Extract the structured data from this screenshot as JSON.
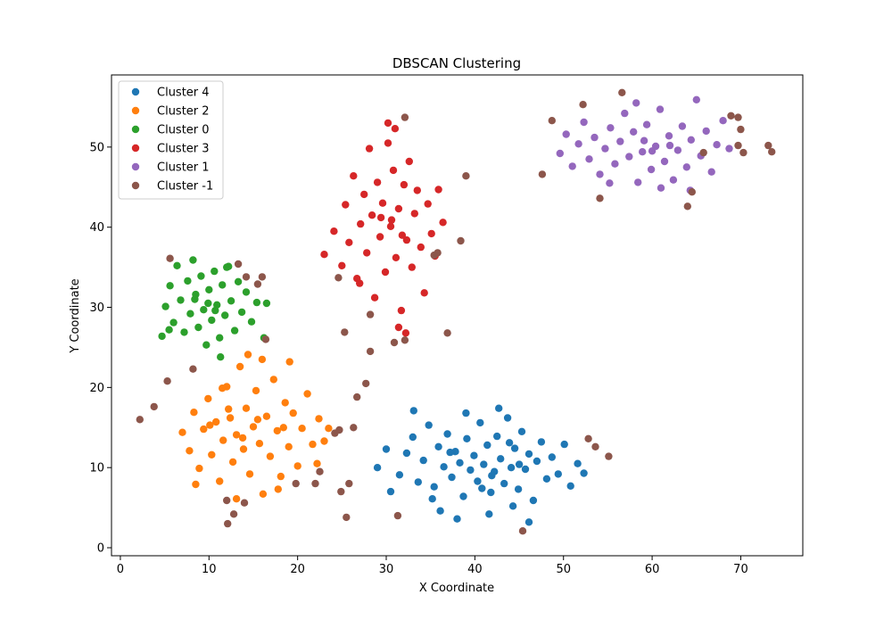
{
  "chart_data": {
    "type": "scatter",
    "title": "DBSCAN Clustering",
    "xlabel": "X Coordinate",
    "ylabel": "Y Coordinate",
    "xlim": [
      -1,
      77
    ],
    "ylim": [
      -1,
      59
    ],
    "x_ticks": [
      0,
      10,
      20,
      30,
      40,
      50,
      60,
      70
    ],
    "y_ticks": [
      0,
      10,
      20,
      30,
      40,
      50
    ],
    "grid": false,
    "legend_position": "top-left",
    "series": [
      {
        "name": "Cluster 4",
        "color": "#1f77b4",
        "points": [
          [
            29.0,
            10.0
          ],
          [
            30.0,
            12.3
          ],
          [
            31.5,
            9.1
          ],
          [
            32.3,
            11.8
          ],
          [
            33.0,
            13.8
          ],
          [
            33.6,
            8.2
          ],
          [
            34.2,
            10.9
          ],
          [
            34.8,
            15.3
          ],
          [
            35.4,
            7.6
          ],
          [
            35.9,
            12.6
          ],
          [
            36.5,
            10.1
          ],
          [
            36.9,
            14.2
          ],
          [
            37.4,
            8.8
          ],
          [
            37.8,
            12.0
          ],
          [
            38.3,
            10.6
          ],
          [
            38.7,
            6.4
          ],
          [
            39.1,
            13.6
          ],
          [
            39.5,
            9.7
          ],
          [
            39.9,
            11.5
          ],
          [
            40.3,
            8.3
          ],
          [
            40.6,
            15.6
          ],
          [
            41.0,
            10.4
          ],
          [
            41.4,
            12.8
          ],
          [
            41.8,
            6.9
          ],
          [
            42.2,
            9.5
          ],
          [
            42.5,
            13.9
          ],
          [
            42.9,
            11.1
          ],
          [
            43.3,
            8.0
          ],
          [
            43.7,
            16.2
          ],
          [
            44.1,
            10.0
          ],
          [
            44.5,
            12.4
          ],
          [
            44.9,
            7.3
          ],
          [
            45.3,
            14.5
          ],
          [
            45.7,
            9.8
          ],
          [
            46.1,
            11.7
          ],
          [
            46.6,
            5.9
          ],
          [
            47.0,
            10.8
          ],
          [
            47.5,
            13.2
          ],
          [
            48.1,
            8.6
          ],
          [
            48.7,
            11.3
          ],
          [
            49.4,
            9.2
          ],
          [
            50.1,
            12.9
          ],
          [
            50.8,
            7.7
          ],
          [
            51.6,
            10.5
          ],
          [
            52.3,
            9.3
          ],
          [
            36.1,
            4.6
          ],
          [
            38.0,
            3.6
          ],
          [
            41.6,
            4.2
          ],
          [
            42.7,
            17.4
          ],
          [
            33.1,
            17.1
          ],
          [
            30.5,
            7.0
          ],
          [
            46.1,
            3.2
          ],
          [
            44.3,
            5.2
          ],
          [
            39.0,
            16.8
          ],
          [
            35.2,
            6.1
          ],
          [
            40.8,
            7.4
          ],
          [
            37.2,
            11.9
          ],
          [
            43.9,
            13.1
          ],
          [
            45.0,
            10.4
          ],
          [
            41.9,
            9.0
          ]
        ]
      },
      {
        "name": "Cluster 2",
        "color": "#ff7f0e",
        "points": [
          [
            7.0,
            14.4
          ],
          [
            7.8,
            12.1
          ],
          [
            8.3,
            16.9
          ],
          [
            8.9,
            9.9
          ],
          [
            9.4,
            14.8
          ],
          [
            9.9,
            18.6
          ],
          [
            10.3,
            11.6
          ],
          [
            10.8,
            15.7
          ],
          [
            11.2,
            8.3
          ],
          [
            11.6,
            13.4
          ],
          [
            12.0,
            20.1
          ],
          [
            12.4,
            16.2
          ],
          [
            12.7,
            10.7
          ],
          [
            13.1,
            14.1
          ],
          [
            13.5,
            22.6
          ],
          [
            13.9,
            12.3
          ],
          [
            14.2,
            17.4
          ],
          [
            14.6,
            9.2
          ],
          [
            15.0,
            15.1
          ],
          [
            15.3,
            19.6
          ],
          [
            15.7,
            13.0
          ],
          [
            16.1,
            6.7
          ],
          [
            16.5,
            16.4
          ],
          [
            16.9,
            11.4
          ],
          [
            17.3,
            21.0
          ],
          [
            17.7,
            14.6
          ],
          [
            18.1,
            8.9
          ],
          [
            18.6,
            18.1
          ],
          [
            19.0,
            12.6
          ],
          [
            19.5,
            16.8
          ],
          [
            20.0,
            10.2
          ],
          [
            20.5,
            14.9
          ],
          [
            21.1,
            19.2
          ],
          [
            21.7,
            12.9
          ],
          [
            22.4,
            16.1
          ],
          [
            23.0,
            13.3
          ],
          [
            13.1,
            6.1
          ],
          [
            14.4,
            24.1
          ],
          [
            16.0,
            23.5
          ],
          [
            19.1,
            23.2
          ],
          [
            22.2,
            10.5
          ],
          [
            23.5,
            14.9
          ],
          [
            8.5,
            7.9
          ],
          [
            11.5,
            19.9
          ],
          [
            17.8,
            7.3
          ],
          [
            10.1,
            15.3
          ],
          [
            15.5,
            16.0
          ],
          [
            13.8,
            13.7
          ],
          [
            12.2,
            17.3
          ],
          [
            18.4,
            15.0
          ]
        ]
      },
      {
        "name": "Cluster 0",
        "color": "#2ca02c",
        "points": [
          [
            4.7,
            26.4
          ],
          [
            5.1,
            30.1
          ],
          [
            5.6,
            32.7
          ],
          [
            6.0,
            28.1
          ],
          [
            6.4,
            35.2
          ],
          [
            6.8,
            30.9
          ],
          [
            7.2,
            26.9
          ],
          [
            7.6,
            33.3
          ],
          [
            7.9,
            29.2
          ],
          [
            8.2,
            35.9
          ],
          [
            8.5,
            31.6
          ],
          [
            8.8,
            27.5
          ],
          [
            9.1,
            33.9
          ],
          [
            9.4,
            29.7
          ],
          [
            9.7,
            25.3
          ],
          [
            10.0,
            32.2
          ],
          [
            10.3,
            28.4
          ],
          [
            10.6,
            34.5
          ],
          [
            10.9,
            30.3
          ],
          [
            11.2,
            26.2
          ],
          [
            11.5,
            32.8
          ],
          [
            11.8,
            29.0
          ],
          [
            12.2,
            35.1
          ],
          [
            12.5,
            30.8
          ],
          [
            12.9,
            27.1
          ],
          [
            13.3,
            33.2
          ],
          [
            13.7,
            29.4
          ],
          [
            14.2,
            31.9
          ],
          [
            14.8,
            28.2
          ],
          [
            15.4,
            30.6
          ],
          [
            16.5,
            30.5
          ],
          [
            16.2,
            26.2
          ],
          [
            11.3,
            23.8
          ],
          [
            12.0,
            35.0
          ],
          [
            5.5,
            27.2
          ],
          [
            8.4,
            31.0
          ],
          [
            9.9,
            30.5
          ],
          [
            10.7,
            29.6
          ]
        ]
      },
      {
        "name": "Cluster 3",
        "color": "#d62728",
        "points": [
          [
            23.0,
            36.6
          ],
          [
            24.1,
            39.5
          ],
          [
            25.0,
            35.2
          ],
          [
            25.4,
            42.8
          ],
          [
            25.8,
            38.1
          ],
          [
            26.3,
            46.4
          ],
          [
            26.7,
            33.6
          ],
          [
            27.1,
            40.4
          ],
          [
            27.5,
            44.1
          ],
          [
            27.8,
            36.8
          ],
          [
            28.1,
            49.8
          ],
          [
            28.4,
            41.5
          ],
          [
            28.7,
            31.2
          ],
          [
            29.0,
            45.6
          ],
          [
            29.3,
            38.8
          ],
          [
            29.6,
            43.0
          ],
          [
            29.9,
            34.4
          ],
          [
            30.2,
            50.5
          ],
          [
            30.5,
            40.1
          ],
          [
            30.8,
            47.1
          ],
          [
            31.1,
            36.2
          ],
          [
            31.4,
            42.3
          ],
          [
            31.7,
            29.6
          ],
          [
            32.0,
            45.3
          ],
          [
            32.3,
            38.4
          ],
          [
            32.6,
            48.2
          ],
          [
            32.9,
            35.0
          ],
          [
            33.2,
            41.7
          ],
          [
            33.5,
            44.6
          ],
          [
            33.9,
            37.5
          ],
          [
            34.3,
            31.8
          ],
          [
            34.7,
            42.9
          ],
          [
            35.1,
            39.2
          ],
          [
            35.5,
            36.4
          ],
          [
            35.9,
            44.7
          ],
          [
            36.4,
            40.6
          ],
          [
            31.0,
            52.3
          ],
          [
            30.2,
            53.0
          ],
          [
            32.2,
            26.8
          ],
          [
            31.4,
            27.5
          ],
          [
            27.0,
            33.0
          ],
          [
            30.6,
            40.9
          ],
          [
            29.4,
            41.2
          ],
          [
            31.8,
            39.0
          ]
        ]
      },
      {
        "name": "Cluster 1",
        "color": "#9467bd",
        "points": [
          [
            49.6,
            49.2
          ],
          [
            50.3,
            51.6
          ],
          [
            51.0,
            47.6
          ],
          [
            51.7,
            50.4
          ],
          [
            52.3,
            53.1
          ],
          [
            52.9,
            48.5
          ],
          [
            53.5,
            51.2
          ],
          [
            54.1,
            46.6
          ],
          [
            54.7,
            49.8
          ],
          [
            55.3,
            52.4
          ],
          [
            55.8,
            47.9
          ],
          [
            56.4,
            50.7
          ],
          [
            56.9,
            54.2
          ],
          [
            57.4,
            48.8
          ],
          [
            57.9,
            51.9
          ],
          [
            58.4,
            45.6
          ],
          [
            58.9,
            49.4
          ],
          [
            59.4,
            52.8
          ],
          [
            59.9,
            47.2
          ],
          [
            60.4,
            50.1
          ],
          [
            60.9,
            54.7
          ],
          [
            61.4,
            48.2
          ],
          [
            61.9,
            51.4
          ],
          [
            62.4,
            45.9
          ],
          [
            62.9,
            49.6
          ],
          [
            63.4,
            52.6
          ],
          [
            63.9,
            47.5
          ],
          [
            64.4,
            50.9
          ],
          [
            65.0,
            55.9
          ],
          [
            65.5,
            48.9
          ],
          [
            66.1,
            52.0
          ],
          [
            66.7,
            46.9
          ],
          [
            67.3,
            50.3
          ],
          [
            68.0,
            53.3
          ],
          [
            68.7,
            49.8
          ],
          [
            61.0,
            44.9
          ],
          [
            58.2,
            55.5
          ],
          [
            64.3,
            44.6
          ],
          [
            55.2,
            45.5
          ],
          [
            60.0,
            49.5
          ],
          [
            62.0,
            50.2
          ],
          [
            59.1,
            50.8
          ]
        ]
      },
      {
        "name": "Cluster -1",
        "color": "#8c564b",
        "points": [
          [
            2.2,
            16.0
          ],
          [
            3.8,
            17.6
          ],
          [
            5.3,
            20.8
          ],
          [
            5.6,
            36.1
          ],
          [
            8.2,
            22.3
          ],
          [
            12.1,
            3.0
          ],
          [
            12.0,
            5.9
          ],
          [
            12.8,
            4.2
          ],
          [
            13.3,
            35.4
          ],
          [
            14.0,
            5.6
          ],
          [
            14.2,
            33.8
          ],
          [
            15.5,
            32.9
          ],
          [
            16.0,
            33.8
          ],
          [
            16.4,
            26.0
          ],
          [
            19.8,
            8.0
          ],
          [
            22.0,
            8.0
          ],
          [
            22.5,
            9.5
          ],
          [
            24.2,
            14.3
          ],
          [
            24.6,
            33.7
          ],
          [
            24.7,
            14.7
          ],
          [
            24.9,
            7.0
          ],
          [
            25.3,
            26.9
          ],
          [
            25.5,
            3.8
          ],
          [
            25.8,
            8.0
          ],
          [
            26.3,
            15.0
          ],
          [
            26.7,
            18.8
          ],
          [
            27.7,
            20.5
          ],
          [
            28.2,
            24.5
          ],
          [
            28.2,
            29.1
          ],
          [
            30.9,
            25.6
          ],
          [
            31.3,
            4.0
          ],
          [
            32.1,
            53.7
          ],
          [
            32.1,
            25.9
          ],
          [
            35.4,
            36.5
          ],
          [
            35.8,
            36.8
          ],
          [
            36.9,
            26.8
          ],
          [
            38.4,
            38.3
          ],
          [
            39.0,
            46.4
          ],
          [
            45.4,
            2.1
          ],
          [
            47.6,
            46.6
          ],
          [
            48.7,
            53.3
          ],
          [
            52.2,
            55.3
          ],
          [
            52.8,
            13.6
          ],
          [
            53.6,
            12.6
          ],
          [
            54.1,
            43.6
          ],
          [
            55.1,
            11.4
          ],
          [
            56.6,
            56.8
          ],
          [
            64.0,
            42.6
          ],
          [
            64.5,
            44.4
          ],
          [
            65.8,
            49.3
          ],
          [
            68.9,
            53.9
          ],
          [
            69.7,
            50.2
          ],
          [
            69.7,
            53.7
          ],
          [
            70.0,
            52.2
          ],
          [
            70.3,
            49.3
          ],
          [
            73.1,
            50.2
          ],
          [
            73.5,
            49.4
          ]
        ]
      }
    ]
  }
}
